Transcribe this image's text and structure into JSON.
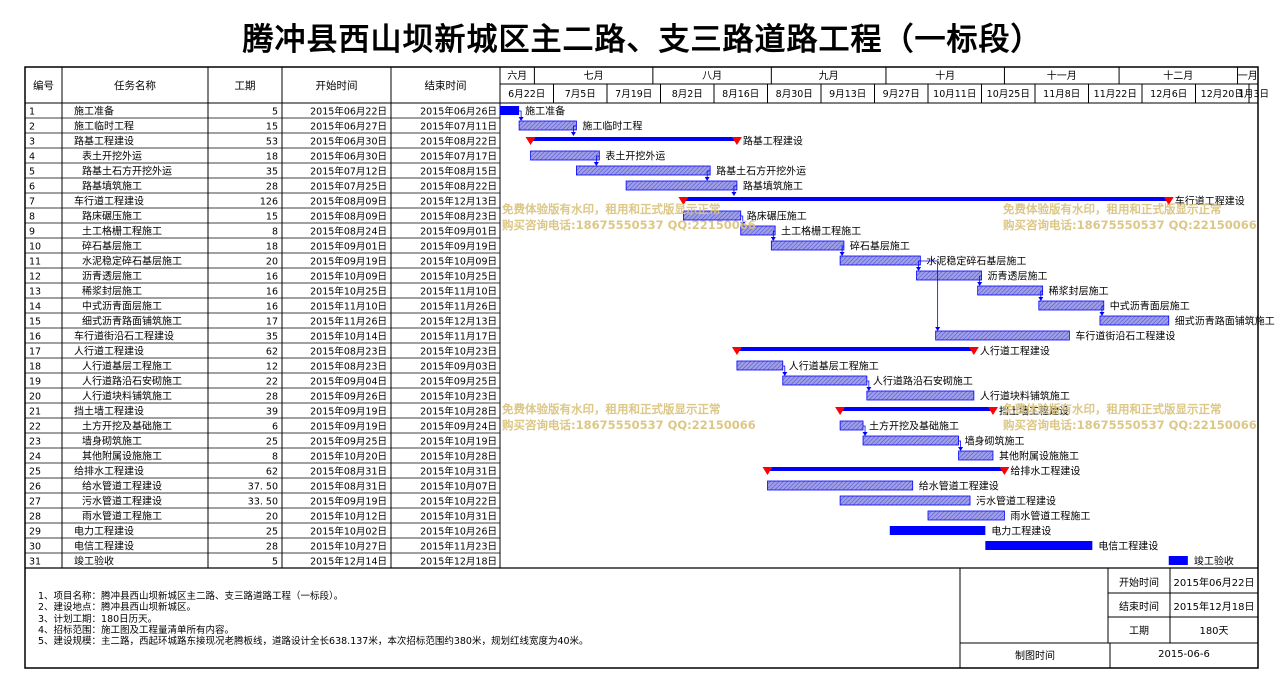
{
  "title": "腾冲县西山坝新城区主二路、支三路道路工程（一标段）",
  "headers": {
    "id": "编号",
    "name": "任务名称",
    "duration": "工期",
    "start": "开始时间",
    "end": "结束时间"
  },
  "months": [
    "六月",
    "七月",
    "八月",
    "九月",
    "十月",
    "十一月",
    "十二月",
    "一月"
  ],
  "weeks": [
    "6月22日",
    "7月5日",
    "7月19日",
    "8月2日",
    "8月16日",
    "8月30日",
    "9月13日",
    "9月27日",
    "10月11日",
    "10月25日",
    "11月8日",
    "11月22日",
    "12月6日",
    "12月20日",
    "1月3日"
  ],
  "tasks": [
    {
      "id": "1",
      "name": "施工准备",
      "dur": "5",
      "start": "2015年06月22日",
      "end": "2015年06月26日",
      "indent": 0,
      "summary": false
    },
    {
      "id": "2",
      "name": "施工临时工程",
      "dur": "15",
      "start": "2015年06月27日",
      "end": "2015年07月11日",
      "indent": 0,
      "summary": false
    },
    {
      "id": "3",
      "name": "路基工程建设",
      "dur": "53",
      "start": "2015年06月30日",
      "end": "2015年08月22日",
      "indent": 0,
      "summary": true
    },
    {
      "id": "4",
      "name": "表土开挖外运",
      "dur": "18",
      "start": "2015年06月30日",
      "end": "2015年07月17日",
      "indent": 1,
      "summary": false
    },
    {
      "id": "5",
      "name": "路基土石方开挖外运",
      "dur": "35",
      "start": "2015年07月12日",
      "end": "2015年08月15日",
      "indent": 1,
      "summary": false
    },
    {
      "id": "6",
      "name": "路基填筑施工",
      "dur": "28",
      "start": "2015年07月25日",
      "end": "2015年08月22日",
      "indent": 1,
      "summary": false
    },
    {
      "id": "7",
      "name": "车行道工程建设",
      "dur": "126",
      "start": "2015年08月09日",
      "end": "2015年12月13日",
      "indent": 0,
      "summary": true
    },
    {
      "id": "8",
      "name": "路床碾压施工",
      "dur": "15",
      "start": "2015年08月09日",
      "end": "2015年08月23日",
      "indent": 1,
      "summary": false
    },
    {
      "id": "9",
      "name": "土工格栅工程施工",
      "dur": "8",
      "start": "2015年08月24日",
      "end": "2015年09月01日",
      "indent": 1,
      "summary": false
    },
    {
      "id": "10",
      "name": "碎石基层施工",
      "dur": "18",
      "start": "2015年09月01日",
      "end": "2015年09月19日",
      "indent": 1,
      "summary": false
    },
    {
      "id": "11",
      "name": "水泥稳定碎石基层施工",
      "dur": "20",
      "start": "2015年09月19日",
      "end": "2015年10月09日",
      "indent": 1,
      "summary": false
    },
    {
      "id": "12",
      "name": "沥青透层施工",
      "dur": "16",
      "start": "2015年10月09日",
      "end": "2015年10月25日",
      "indent": 1,
      "summary": false
    },
    {
      "id": "13",
      "name": "稀浆封层施工",
      "dur": "16",
      "start": "2015年10月25日",
      "end": "2015年11月10日",
      "indent": 1,
      "summary": false
    },
    {
      "id": "14",
      "name": "中式沥青面层施工",
      "dur": "16",
      "start": "2015年11月10日",
      "end": "2015年11月26日",
      "indent": 1,
      "summary": false
    },
    {
      "id": "15",
      "name": "细式沥青路面铺筑施工",
      "dur": "17",
      "start": "2015年11月26日",
      "end": "2015年12月13日",
      "indent": 1,
      "summary": false
    },
    {
      "id": "16",
      "name": "车行道街沿石工程建设",
      "dur": "35",
      "start": "2015年10月14日",
      "end": "2015年11月17日",
      "indent": 0,
      "summary": false
    },
    {
      "id": "17",
      "name": "人行道工程建设",
      "dur": "62",
      "start": "2015年08月23日",
      "end": "2015年10月23日",
      "indent": 0,
      "summary": true
    },
    {
      "id": "18",
      "name": "人行道基层工程施工",
      "dur": "12",
      "start": "2015年08月23日",
      "end": "2015年09月03日",
      "indent": 1,
      "summary": false
    },
    {
      "id": "19",
      "name": "人行道路沿石安砌施工",
      "dur": "22",
      "start": "2015年09月04日",
      "end": "2015年09月25日",
      "indent": 1,
      "summary": false
    },
    {
      "id": "20",
      "name": "人行道块料铺筑施工",
      "dur": "28",
      "start": "2015年09月26日",
      "end": "2015年10月23日",
      "indent": 1,
      "summary": false
    },
    {
      "id": "21",
      "name": "挡土墙工程建设",
      "dur": "39",
      "start": "2015年09月19日",
      "end": "2015年10月28日",
      "indent": 0,
      "summary": true
    },
    {
      "id": "22",
      "name": "土方开挖及基础施工",
      "dur": "6",
      "start": "2015年09月19日",
      "end": "2015年09月24日",
      "indent": 1,
      "summary": false
    },
    {
      "id": "23",
      "name": "墙身砌筑施工",
      "dur": "25",
      "start": "2015年09月25日",
      "end": "2015年10月19日",
      "indent": 1,
      "summary": false
    },
    {
      "id": "24",
      "name": "其他附属设施施工",
      "dur": "8",
      "start": "2015年10月20日",
      "end": "2015年10月28日",
      "indent": 1,
      "summary": false
    },
    {
      "id": "25",
      "name": "给排水工程建设",
      "dur": "62",
      "start": "2015年08月31日",
      "end": "2015年10月31日",
      "indent": 0,
      "summary": true
    },
    {
      "id": "26",
      "name": "给水管道工程建设",
      "dur": "37. 50",
      "start": "2015年08月31日",
      "end": "2015年10月07日",
      "indent": 1,
      "summary": false
    },
    {
      "id": "27",
      "name": "污水管道工程建设",
      "dur": "33. 50",
      "start": "2015年09月19日",
      "end": "2015年10月22日",
      "indent": 1,
      "summary": false
    },
    {
      "id": "28",
      "name": "雨水管道工程施工",
      "dur": "20",
      "start": "2015年10月12日",
      "end": "2015年10月31日",
      "indent": 1,
      "summary": false
    },
    {
      "id": "29",
      "name": "电力工程建设",
      "dur": "25",
      "start": "2015年10月02日",
      "end": "2015年10月26日",
      "indent": 0,
      "summary": false
    },
    {
      "id": "30",
      "name": "电信工程建设",
      "dur": "28",
      "start": "2015年10月27日",
      "end": "2015年11月23日",
      "indent": 0,
      "summary": false
    },
    {
      "id": "31",
      "name": "竣工验收",
      "dur": "5",
      "start": "2015年12月14日",
      "end": "2015年12月18日",
      "indent": 0,
      "summary": false
    }
  ],
  "watermark": {
    "line1": "免费体验版有水印，租用和正式版显示正常",
    "line2": "购买咨询电话:18675550537 QQ:22150066"
  },
  "notes": [
    "1、项目名称：腾冲县西山坝新城区主二路、支三路道路工程（一标段）。",
    "2、建设地点：腾冲县西山坝新城区。",
    "3、计划工期：180日历天。",
    "4、招标范围：施工图及工程量清单所有内容。",
    "5、建设规模：主二路，西起环城路东接现况老腾板线，道路设计全长638.137米，本次招标范围约380米，规划红线宽度为40米。"
  ],
  "footer": {
    "start_label": "开始时间",
    "start_value": "2015年06月22日",
    "end_label": "结束时间",
    "end_value": "2015年12月18日",
    "duration_label": "工期",
    "duration_value": "180天",
    "drawn_label": "制图时间",
    "drawn_value": "2015-06-6"
  },
  "colors": {
    "bar_fill": "#7f7fd6",
    "bar_stroke": "#0000ff",
    "summary": "#0000ff",
    "milestone": "#ff0000",
    "watermark": "#d9c27a",
    "link": "#0000ff"
  }
}
